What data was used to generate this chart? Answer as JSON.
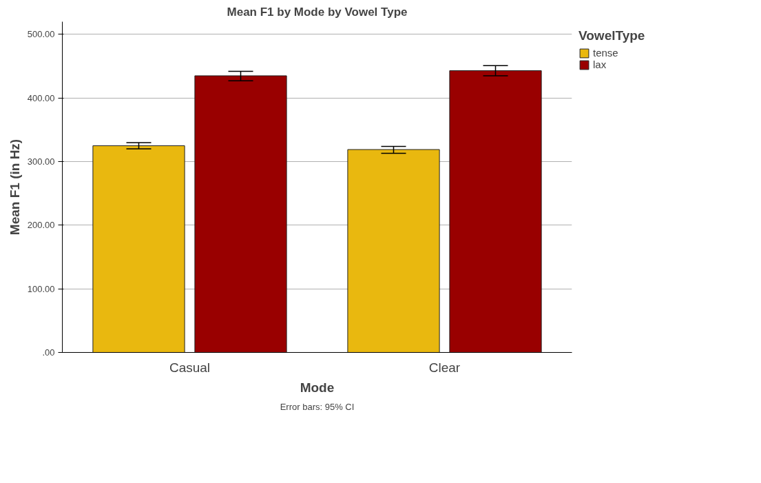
{
  "chart_data": {
    "type": "bar",
    "title": "Mean F1 by Mode by Vowel Type",
    "xlabel": "Mode",
    "ylabel": "Mean F1 (in Hz)",
    "legend_title": "VowelType",
    "categories": [
      "Casual",
      "Clear"
    ],
    "series": [
      {
        "name": "tense",
        "color": "#e9b80f",
        "values": [
          325,
          319
        ],
        "errors": [
          [
            320,
            330
          ],
          [
            313,
            324
          ]
        ]
      },
      {
        "name": "lax",
        "color": "#990000",
        "values": [
          435,
          443
        ],
        "errors": [
          [
            427,
            442
          ],
          [
            435,
            451
          ]
        ]
      }
    ],
    "ylim": [
      0,
      520
    ],
    "yticks": [
      {
        "value": 0,
        "label": ".00"
      },
      {
        "value": 100,
        "label": "100.00"
      },
      {
        "value": 200,
        "label": "200.00"
      },
      {
        "value": 300,
        "label": "300.00"
      },
      {
        "value": 400,
        "label": "400.00"
      },
      {
        "value": 500,
        "label": "500.00"
      }
    ],
    "grid": "y",
    "legend": "top right",
    "annotations": [
      "Error bars: 95% CI"
    ]
  }
}
